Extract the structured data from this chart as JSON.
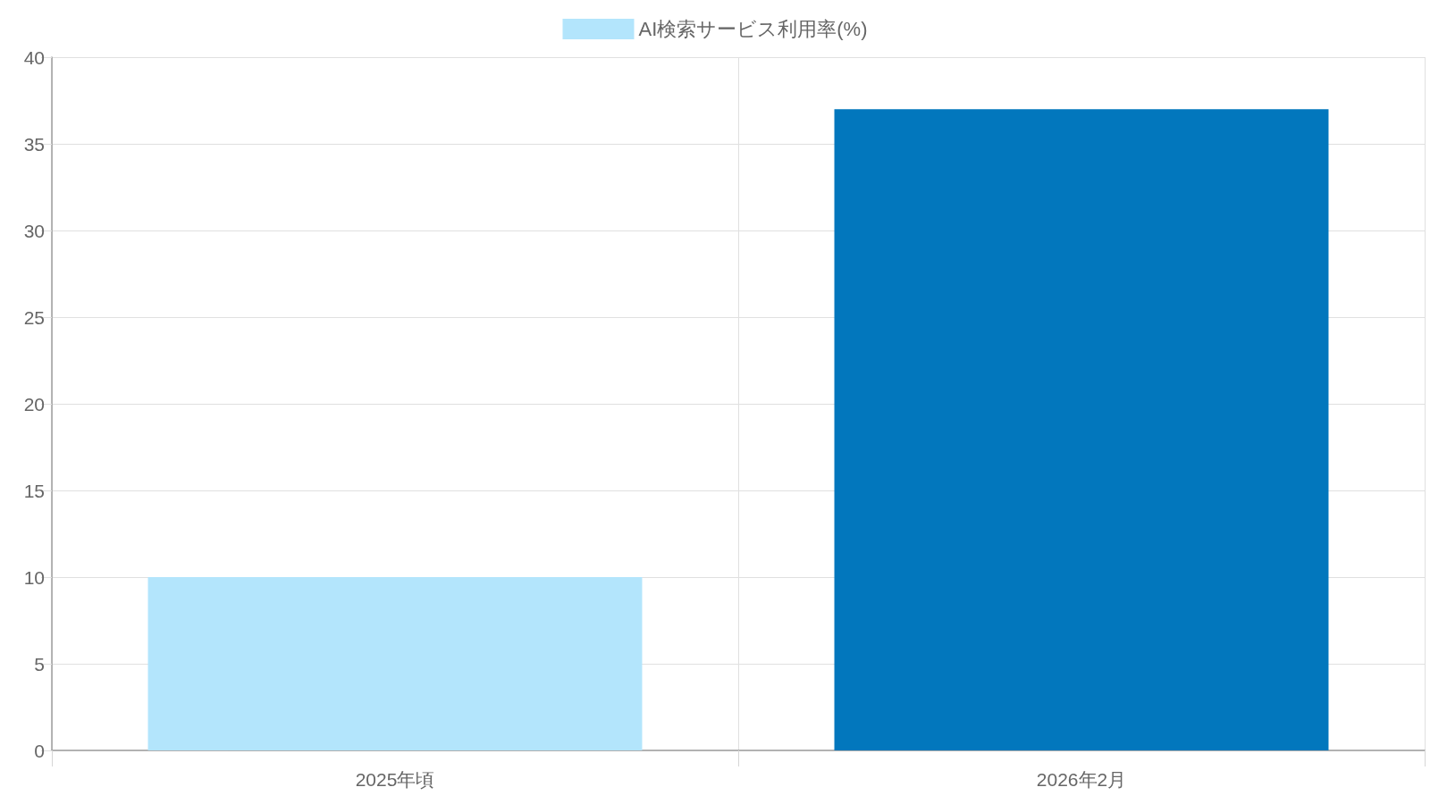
{
  "chart_data": {
    "type": "bar",
    "categories": [
      "2025年頃",
      "2026年2月"
    ],
    "series": [
      {
        "name": "AI検索サービス利用率(%)",
        "colors": [
          "#b3e5fc",
          "#0277bd"
        ],
        "values": [
          10,
          37
        ]
      }
    ],
    "ylim": [
      0,
      40
    ],
    "yticks": [
      0,
      5,
      10,
      15,
      20,
      25,
      30,
      35,
      40
    ],
    "grid": true,
    "legend": "top"
  }
}
